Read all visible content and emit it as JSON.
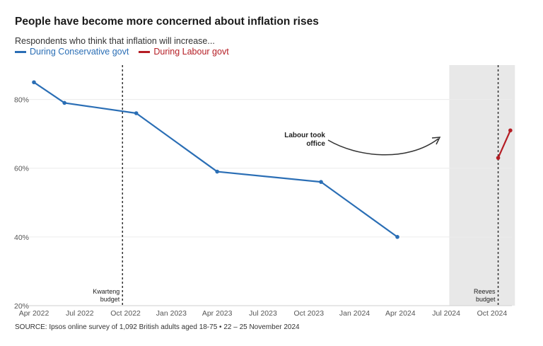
{
  "title": "People have become more concerned about inflation rises",
  "subtitle": "Respondents who think that inflation will increase...",
  "source": "SOURCE: Ipsos online survey of 1,092 British adults aged 18-75 • 22 – 25 November 2024",
  "legend": [
    {
      "label": "During Conservative govt",
      "color": "#2a6eb5"
    },
    {
      "label": "During Labour govt",
      "color": "#b51d24"
    }
  ],
  "chart_data": {
    "type": "line",
    "title": "People have become more concerned about inflation rises",
    "ylabel": "Respondents who think that inflation will increase...",
    "xlabel": "",
    "ylim": [
      20,
      90
    ],
    "y_ticks": [
      20,
      40,
      60,
      80
    ],
    "y_tick_labels": [
      "20%",
      "40%",
      "60%",
      "80%"
    ],
    "x_ticks": [
      {
        "t": 0,
        "label": "Apr 2022"
      },
      {
        "t": 3,
        "label": "Jul 2022"
      },
      {
        "t": 6,
        "label": "Oct 2022"
      },
      {
        "t": 9,
        "label": "Jan 2023"
      },
      {
        "t": 12,
        "label": "Apr 2023"
      },
      {
        "t": 15,
        "label": "Jul 2023"
      },
      {
        "t": 18,
        "label": "Oct 2023"
      },
      {
        "t": 21,
        "label": "Jan 2024"
      },
      {
        "t": 24,
        "label": "Apr 2024"
      },
      {
        "t": 27,
        "label": "Jul 2024"
      },
      {
        "t": 30,
        "label": "Oct 2024"
      }
    ],
    "x_unit": "months since Apr 2022",
    "xlim": [
      0,
      31.2
    ],
    "series": [
      {
        "name": "During Conservative govt",
        "color": "#2a6eb5",
        "points": [
          {
            "x": 0,
            "y": 85
          },
          {
            "x": 2,
            "y": 79
          },
          {
            "x": 6.7,
            "y": 76
          },
          {
            "x": 12,
            "y": 59
          },
          {
            "x": 18.8,
            "y": 56
          },
          {
            "x": 23.8,
            "y": 40
          }
        ]
      },
      {
        "name": "During Labour govt",
        "color": "#b51d24",
        "points": [
          {
            "x": 30.4,
            "y": 63
          },
          {
            "x": 31.2,
            "y": 71
          }
        ]
      }
    ],
    "shaded_period": {
      "from": 27.2,
      "to": 31.5
    },
    "events": [
      {
        "x": 5.8,
        "label_lines": [
          "Kwarteng",
          "budget"
        ]
      },
      {
        "x": 30.4,
        "label_lines": [
          "Reeves",
          "budget"
        ]
      }
    ],
    "annotation": {
      "label_lines": [
        "Labour took",
        "office"
      ]
    }
  }
}
